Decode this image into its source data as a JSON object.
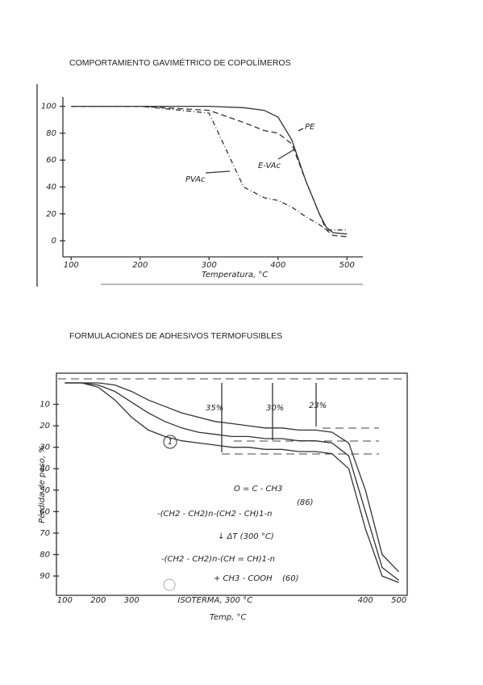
{
  "chart_data": [
    {
      "type": "line",
      "title": "COMPORTAMIENTO GAVIMÉTRICO DE COPOLÍMEROS",
      "x_label": "Temperatura, °C",
      "x": [
        100,
        200,
        300,
        350,
        380,
        400,
        420,
        440,
        460,
        470,
        480,
        500
      ],
      "series": [
        {
          "name": "PE",
          "color": "#333333",
          "values": [
            100,
            100,
            100,
            99,
            97,
            92,
            75,
            45,
            20,
            10,
            6,
            5
          ]
        },
        {
          "name": "E-VAc",
          "color": "#333333",
          "values": [
            100,
            100,
            97,
            88,
            82,
            80,
            72,
            45,
            20,
            8,
            4,
            3
          ]
        },
        {
          "name": "PVAc",
          "color": "#333333",
          "values": [
            100,
            100,
            95,
            40,
            32,
            30,
            25,
            18,
            12,
            8,
            8,
            8
          ]
        }
      ],
      "xlim": [
        88,
        523
      ],
      "xticks": [
        100,
        200,
        300,
        400,
        500
      ],
      "ylim": [
        -12,
        107
      ],
      "yticks": [
        0,
        20,
        40,
        60,
        80,
        100
      ]
    },
    {
      "type": "line",
      "title": "FORMULACIONES DE ADHESIVOS TERMOFUSIBLES",
      "x_label": "Temp, °C",
      "y_label": "Pérdida de peso, %",
      "categories": [
        "100",
        null,
        "200",
        null,
        "300",
        null,
        null,
        null,
        null,
        "ISOTERMA, 300 °C",
        null,
        null,
        null,
        null,
        null,
        null,
        null,
        null,
        "400",
        null,
        "500"
      ],
      "series": [
        {
          "color": "#333333",
          "values": [
            0,
            0,
            0,
            1,
            4,
            8,
            11,
            14,
            16,
            18,
            19,
            20,
            21,
            21,
            22,
            22,
            23,
            28,
            50,
            80,
            88
          ]
        },
        {
          "color": "#333333",
          "values": [
            0,
            0,
            1,
            4,
            9,
            14,
            18,
            21,
            23,
            24,
            25,
            25,
            26,
            26,
            27,
            27,
            28,
            34,
            60,
            86,
            92
          ]
        },
        {
          "name": "1",
          "color": "#333333",
          "values": [
            0,
            0,
            2,
            8,
            16,
            22,
            25,
            27,
            28,
            29,
            30,
            30,
            31,
            31,
            32,
            32,
            33,
            40,
            68,
            90,
            93
          ]
        }
      ],
      "annotations": [
        "35%",
        "30%",
        "23%",
        "O = C - CH3",
        "(86)",
        "-(CH2 - CH2)n-(CH2 - CH)1-n",
        "↓ ΔT (300 °C)",
        "-(CH2 - CH2)n-(CH = CH)1-n",
        "+ CH3 - COOH",
        "(60)"
      ],
      "ylim": [
        99,
        -4.5
      ],
      "yticks": [
        10,
        20,
        30,
        40,
        50,
        60,
        70,
        80,
        90
      ]
    }
  ]
}
